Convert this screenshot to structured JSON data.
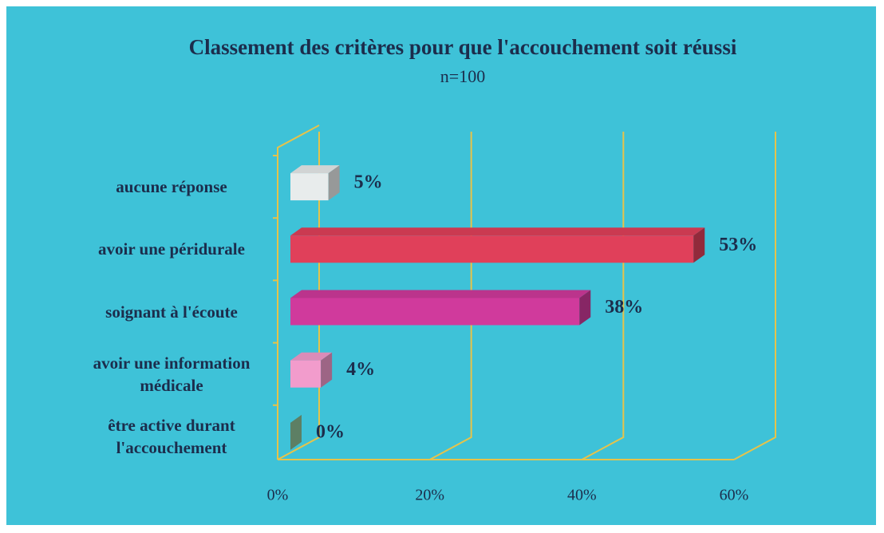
{
  "chart_data": {
    "type": "bar3d_horizontal",
    "title": "Classement des critères pour que l'accouchement soit réussi",
    "subtitle": "n=100",
    "categories": [
      "aucune réponse",
      "avoir une péridurale",
      "soignant à l'écoute",
      "avoir une information médicale",
      "être active durant l'accouchement"
    ],
    "values": [
      5,
      53,
      38,
      4,
      0
    ],
    "value_labels": [
      "5%",
      "53%",
      "38%",
      "4%",
      "0%"
    ],
    "colors": [
      "#e8ecec",
      "#e0405a",
      "#d03a9c",
      "#f29ccc",
      "#8fc49a"
    ],
    "xlim": [
      0,
      60
    ],
    "xticks": [
      {
        "value": 0,
        "label": "0%"
      },
      {
        "value": 20,
        "label": "20%"
      },
      {
        "value": 40,
        "label": "40%"
      },
      {
        "value": 60,
        "label": "60%"
      }
    ],
    "grid": true
  }
}
